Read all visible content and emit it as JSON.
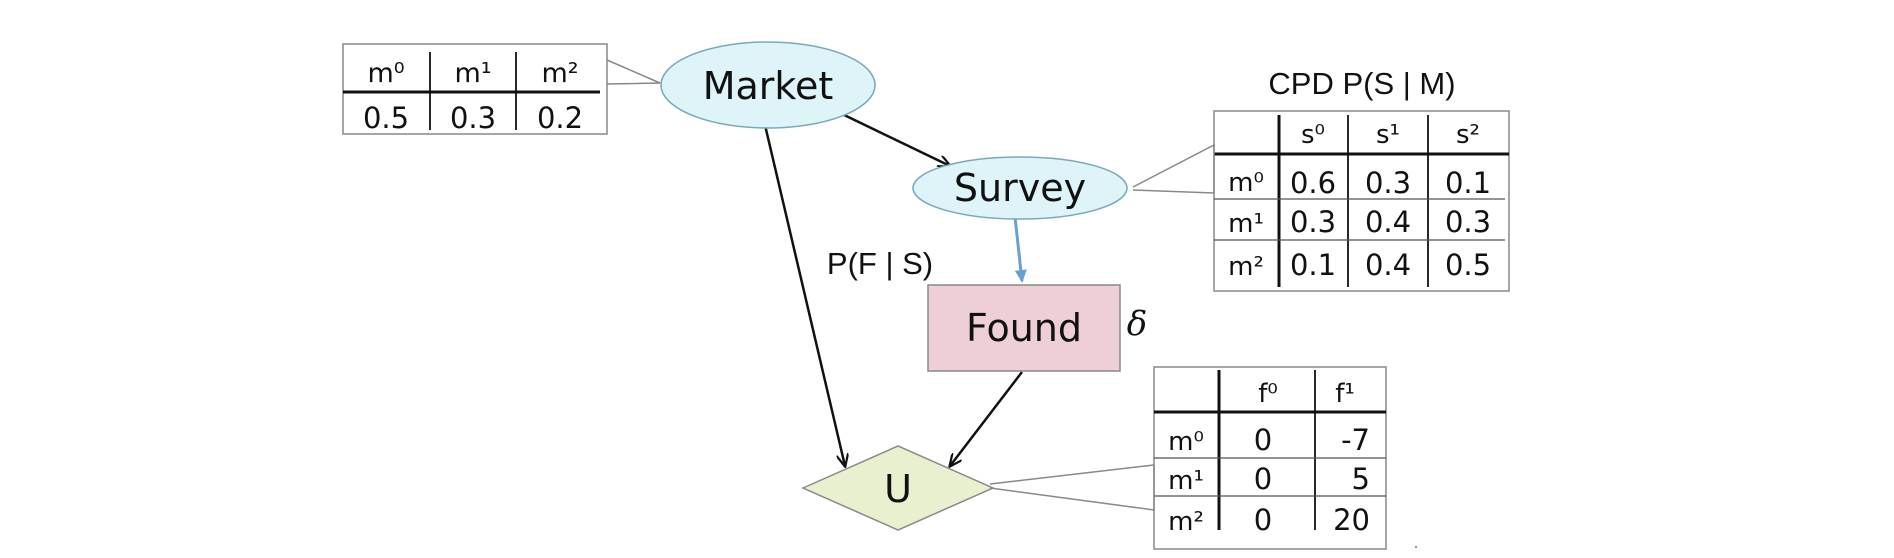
{
  "nodes": {
    "market": "Market",
    "survey": "Survey",
    "found": "Found",
    "utility": "U"
  },
  "labels": {
    "cpd_title": "CPD P(S | M)",
    "policy": "P(F | S)",
    "decision_symbol": "δ"
  },
  "market_table": {
    "headers": [
      "m⁰",
      "m¹",
      "m²"
    ],
    "values": [
      "0.5",
      "0.3",
      "0.2"
    ]
  },
  "survey_table": {
    "col_headers": [
      "s⁰",
      "s¹",
      "s²"
    ],
    "rows": [
      {
        "label": "m⁰",
        "values": [
          "0.6",
          "0.3",
          "0.1"
        ]
      },
      {
        "label": "m¹",
        "values": [
          "0.3",
          "0.4",
          "0.3"
        ]
      },
      {
        "label": "m²",
        "values": [
          "0.1",
          "0.4",
          "0.5"
        ]
      }
    ]
  },
  "utility_table": {
    "col_headers": [
      "f⁰",
      "f¹"
    ],
    "rows": [
      {
        "label": "m⁰",
        "values": [
          "0",
          "-7"
        ]
      },
      {
        "label": "m¹",
        "values": [
          "0",
          "5"
        ]
      },
      {
        "label": "m²",
        "values": [
          "0",
          "20"
        ]
      }
    ]
  },
  "colors": {
    "chance_node_fill": "#dff4f8",
    "decision_node_fill": "#efcfd6",
    "utility_node_fill": "#e8f0cf",
    "blue_arrow": "#6a9fd4"
  }
}
